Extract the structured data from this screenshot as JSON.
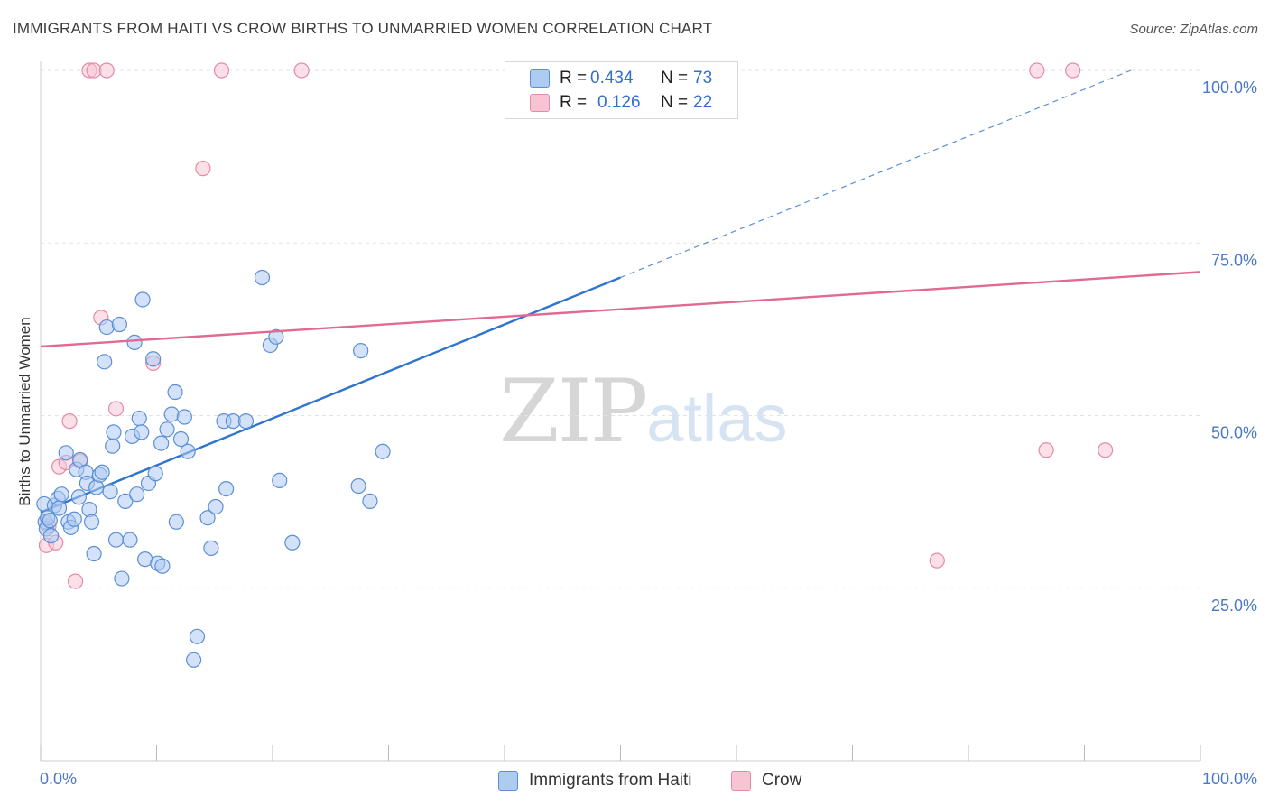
{
  "header": {
    "title": "IMMIGRANTS FROM HAITI VS CROW BIRTHS TO UNMARRIED WOMEN CORRELATION CHART",
    "source": "Source: ZipAtlas.com"
  },
  "watermark": {
    "zip": "ZIP",
    "atlas": "atlas"
  },
  "legend": {
    "r_label": "R =",
    "n_label": "N =",
    "items": [
      {
        "r": "0.434",
        "n": "73",
        "swatch": "#aecbf2",
        "border": "#5d8fd6"
      },
      {
        "r": "0.126",
        "n": "22",
        "swatch": "#f8c4d3",
        "border": "#e58aa6"
      }
    ]
  },
  "bottom_legend": [
    "Immigrants from Haiti",
    "Crow"
  ],
  "colors": {
    "blue_fill": "#aecbf2",
    "blue_edge": "#5b8fd6",
    "blue_line": "#2f74cf",
    "pink_fill": "#f7c7d6",
    "pink_edge": "#e48aa8",
    "pink_line": "#e06a93",
    "grid": "#e3e3e3",
    "tick_text": "#4a78c8"
  },
  "chart_data": {
    "type": "scatter",
    "title": "IMMIGRANTS FROM HAITI VS CROW BIRTHS TO UNMARRIED WOMEN CORRELATION CHART",
    "xlabel": "",
    "ylabel": "Births to Unmarried Women",
    "xlim": [
      0,
      100
    ],
    "ylim": [
      0,
      100
    ],
    "x_tick_labels": [
      "0.0%",
      "100.0%"
    ],
    "y_tick_values": [
      25,
      50,
      75,
      100
    ],
    "y_tick_labels": [
      "25.0%",
      "50.0%",
      "75.0%",
      "100.0%"
    ],
    "series": [
      {
        "name": "Immigrants from Haiti",
        "R": 0.434,
        "N": 73,
        "trend": {
          "x0": 0,
          "y0": 36.0,
          "x1": 50,
          "y1": 70.0,
          "dashed_to_x": 94,
          "dashed_to_y": 100
        },
        "points": [
          [
            0.3,
            37.2
          ],
          [
            0.4,
            34.6
          ],
          [
            0.5,
            33.6
          ],
          [
            0.6,
            35.2
          ],
          [
            0.8,
            34.8
          ],
          [
            0.9,
            32.6
          ],
          [
            1.2,
            37.0
          ],
          [
            1.5,
            38.0
          ],
          [
            1.6,
            36.6
          ],
          [
            1.8,
            38.6
          ],
          [
            2.2,
            44.6
          ],
          [
            2.4,
            34.6
          ],
          [
            2.6,
            33.8
          ],
          [
            2.9,
            35.0
          ],
          [
            3.1,
            42.2
          ],
          [
            3.3,
            38.2
          ],
          [
            3.4,
            43.6
          ],
          [
            3.9,
            41.8
          ],
          [
            4.0,
            40.2
          ],
          [
            4.2,
            36.4
          ],
          [
            4.4,
            34.6
          ],
          [
            4.6,
            30.0
          ],
          [
            4.8,
            39.6
          ],
          [
            5.1,
            41.4
          ],
          [
            5.3,
            41.8
          ],
          [
            5.5,
            57.8
          ],
          [
            5.7,
            62.8
          ],
          [
            6.0,
            39.0
          ],
          [
            6.2,
            45.6
          ],
          [
            6.3,
            47.6
          ],
          [
            6.5,
            32.0
          ],
          [
            6.8,
            63.2
          ],
          [
            7.0,
            26.4
          ],
          [
            7.3,
            37.6
          ],
          [
            7.7,
            32.0
          ],
          [
            7.9,
            47.0
          ],
          [
            8.1,
            60.6
          ],
          [
            8.3,
            38.6
          ],
          [
            8.5,
            49.6
          ],
          [
            8.7,
            47.6
          ],
          [
            8.8,
            66.8
          ],
          [
            9.0,
            29.2
          ],
          [
            9.3,
            40.2
          ],
          [
            9.7,
            58.2
          ],
          [
            9.9,
            41.6
          ],
          [
            10.1,
            28.6
          ],
          [
            10.4,
            46.0
          ],
          [
            10.5,
            28.2
          ],
          [
            10.9,
            48.0
          ],
          [
            11.3,
            50.2
          ],
          [
            11.6,
            53.4
          ],
          [
            11.7,
            34.6
          ],
          [
            12.1,
            46.6
          ],
          [
            12.4,
            49.8
          ],
          [
            12.7,
            44.8
          ],
          [
            13.2,
            14.6
          ],
          [
            13.5,
            18.0
          ],
          [
            14.4,
            35.2
          ],
          [
            14.7,
            30.8
          ],
          [
            15.1,
            36.8
          ],
          [
            15.8,
            49.2
          ],
          [
            16.0,
            39.4
          ],
          [
            16.6,
            49.2
          ],
          [
            17.7,
            49.2
          ],
          [
            19.1,
            70.0
          ],
          [
            19.8,
            60.2
          ],
          [
            20.3,
            61.4
          ],
          [
            20.6,
            40.6
          ],
          [
            21.7,
            31.6
          ],
          [
            27.4,
            39.8
          ],
          [
            27.6,
            59.4
          ],
          [
            28.4,
            37.6
          ],
          [
            29.5,
            44.8
          ]
        ]
      },
      {
        "name": "Crow",
        "R": 0.126,
        "N": 22,
        "trend": {
          "x0": 0,
          "y0": 60.0,
          "x1": 100,
          "y1": 70.8
        },
        "points": [
          [
            0.5,
            31.2
          ],
          [
            0.7,
            34.0
          ],
          [
            1.3,
            31.6
          ],
          [
            1.6,
            42.6
          ],
          [
            2.2,
            43.2
          ],
          [
            2.5,
            49.2
          ],
          [
            3.0,
            26.0
          ],
          [
            3.4,
            43.4
          ],
          [
            4.2,
            100
          ],
          [
            4.6,
            100
          ],
          [
            5.2,
            64.2
          ],
          [
            5.7,
            100
          ],
          [
            6.5,
            51.0
          ],
          [
            9.7,
            57.6
          ],
          [
            14.0,
            85.8
          ],
          [
            15.6,
            100
          ],
          [
            22.5,
            100
          ],
          [
            77.3,
            29.0
          ],
          [
            85.9,
            100
          ],
          [
            86.7,
            45.0
          ],
          [
            89.0,
            100
          ],
          [
            91.8,
            45.0
          ]
        ]
      }
    ]
  }
}
